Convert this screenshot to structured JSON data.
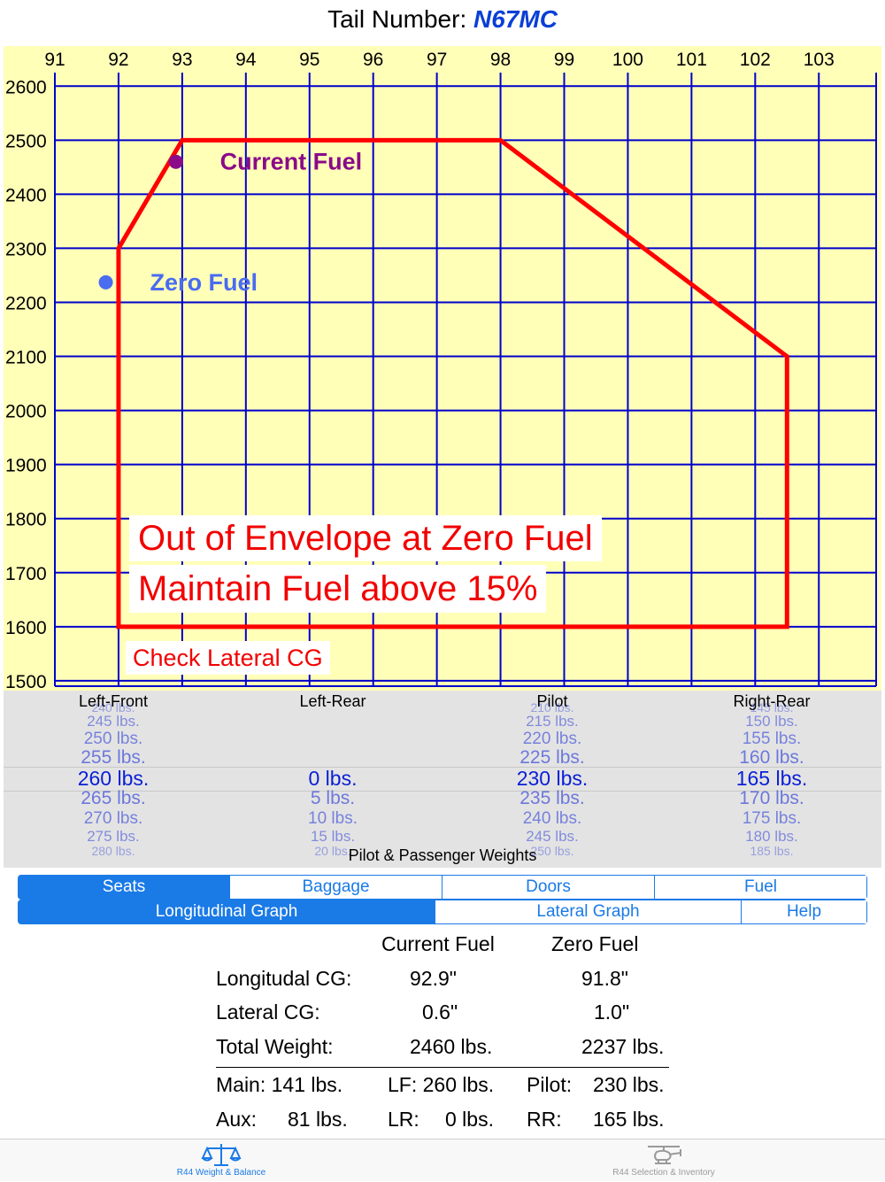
{
  "header": {
    "label": "Tail Number:",
    "tail_number": "N67MC"
  },
  "chart_data": {
    "type": "line",
    "x_ticks": [
      91,
      92,
      93,
      94,
      95,
      96,
      97,
      98,
      99,
      100,
      101,
      102,
      103
    ],
    "y_ticks": [
      2600,
      2500,
      2400,
      2300,
      2200,
      2100,
      2000,
      1900,
      1800,
      1700,
      1600,
      1500
    ],
    "xlim": [
      91,
      103.9
    ],
    "ylim": [
      1490,
      2625
    ],
    "grid": true,
    "envelope": {
      "color": "#ff0000",
      "points": [
        [
          92,
          1600
        ],
        [
          92,
          2300
        ],
        [
          93,
          2500
        ],
        [
          98,
          2500
        ],
        [
          102.5,
          2100
        ],
        [
          102.5,
          1600
        ]
      ]
    },
    "points": [
      {
        "name": "Current Fuel",
        "x": 92.9,
        "y": 2460,
        "color": "#8a0a8a"
      },
      {
        "name": "Zero Fuel",
        "x": 91.8,
        "y": 2237,
        "color": "#4a6cf0"
      }
    ],
    "colors": {
      "background": "#ffffb8",
      "grid": "#0000cc"
    }
  },
  "warnings": {
    "line1": "Out of Envelope at Zero Fuel",
    "line2": "Maintain Fuel above 15%",
    "line3": "Check Lateral CG"
  },
  "picker": {
    "caption": "Pilot & Passenger Weights",
    "columns": [
      {
        "header": "Left-Front",
        "values": [
          "240 lbs.",
          "245 lbs.",
          "250 lbs.",
          "255 lbs.",
          "260 lbs.",
          "265 lbs.",
          "270 lbs.",
          "275 lbs.",
          "280 lbs."
        ],
        "selected": 4
      },
      {
        "header": "Left-Rear",
        "values": [
          "",
          "",
          "",
          "",
          "0 lbs.",
          "5 lbs.",
          "10 lbs.",
          "15 lbs.",
          "20 lbs."
        ],
        "selected": 4
      },
      {
        "header": "Pilot",
        "values": [
          "210 lbs.",
          "215 lbs.",
          "220 lbs.",
          "225 lbs.",
          "230 lbs.",
          "235 lbs.",
          "240 lbs.",
          "245 lbs.",
          "250 lbs."
        ],
        "selected": 4
      },
      {
        "header": "Right-Rear",
        "values": [
          "145 lbs.",
          "150 lbs.",
          "155 lbs.",
          "160 lbs.",
          "165 lbs.",
          "170 lbs.",
          "175 lbs.",
          "180 lbs.",
          "185 lbs."
        ],
        "selected": 4
      }
    ]
  },
  "segments_top": [
    {
      "label": "Seats",
      "active": true
    },
    {
      "label": "Baggage",
      "active": false
    },
    {
      "label": "Doors",
      "active": false
    },
    {
      "label": "Fuel",
      "active": false
    }
  ],
  "segments_bottom": [
    {
      "label": "Longitudinal Graph",
      "active": true
    },
    {
      "label": "Lateral Graph",
      "active": false
    },
    {
      "label": "Help",
      "active": false
    }
  ],
  "summary": {
    "col_current": "Current Fuel",
    "col_zero": "Zero Fuel",
    "rows": [
      {
        "label": "Longitudal CG:",
        "current": "92.9\"",
        "zero": "91.8\""
      },
      {
        "label": "Lateral CG:",
        "current": "0.6\"",
        "zero": "1.0\""
      },
      {
        "label": "Total Weight:",
        "current": "2460 lbs.",
        "zero": "2237 lbs."
      }
    ],
    "fuel_main": "Main: 141 lbs.",
    "fuel_aux_label": "Aux:",
    "fuel_aux_value": "81 lbs.",
    "lf": "LF: 260 lbs.",
    "lr_label": "LR:",
    "lr_value": "0 lbs.",
    "pilot_label": "Pilot:",
    "pilot_value": "230 lbs.",
    "rr_label": "RR:",
    "rr_value": "165 lbs."
  },
  "tabbar": {
    "tab1": {
      "label": "R44 Weight & Balance",
      "icon": "scale-icon",
      "active": true,
      "color": "#1a7ae6"
    },
    "tab2": {
      "label": "R44 Selection & Inventory",
      "icon": "helicopter-icon",
      "active": false,
      "color": "#9a9a9a"
    }
  }
}
